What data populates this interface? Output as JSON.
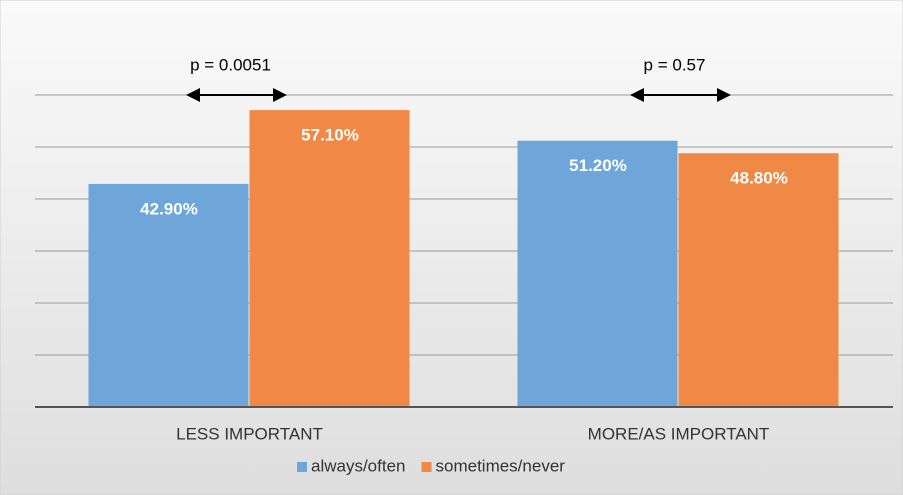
{
  "chart_data": {
    "type": "bar",
    "categories": [
      "LESS IMPORTANT",
      "MORE/AS IMPORTANT"
    ],
    "series": [
      {
        "name": "always/often",
        "color": "#6ea6da",
        "values": [
          42.9,
          51.2
        ],
        "value_labels": [
          "42.90%",
          "51.20%"
        ]
      },
      {
        "name": "sometimes/never",
        "color": "#ef8945",
        "values": [
          57.1,
          48.8
        ],
        "value_labels": [
          "57.10%",
          "48.80%"
        ]
      }
    ],
    "annotations": [
      "p = 0.0051",
      "p = 0.57"
    ],
    "ylim": [
      0,
      70
    ],
    "yticks": [
      0,
      10,
      20,
      30,
      40,
      50,
      60
    ],
    "grid": true
  }
}
